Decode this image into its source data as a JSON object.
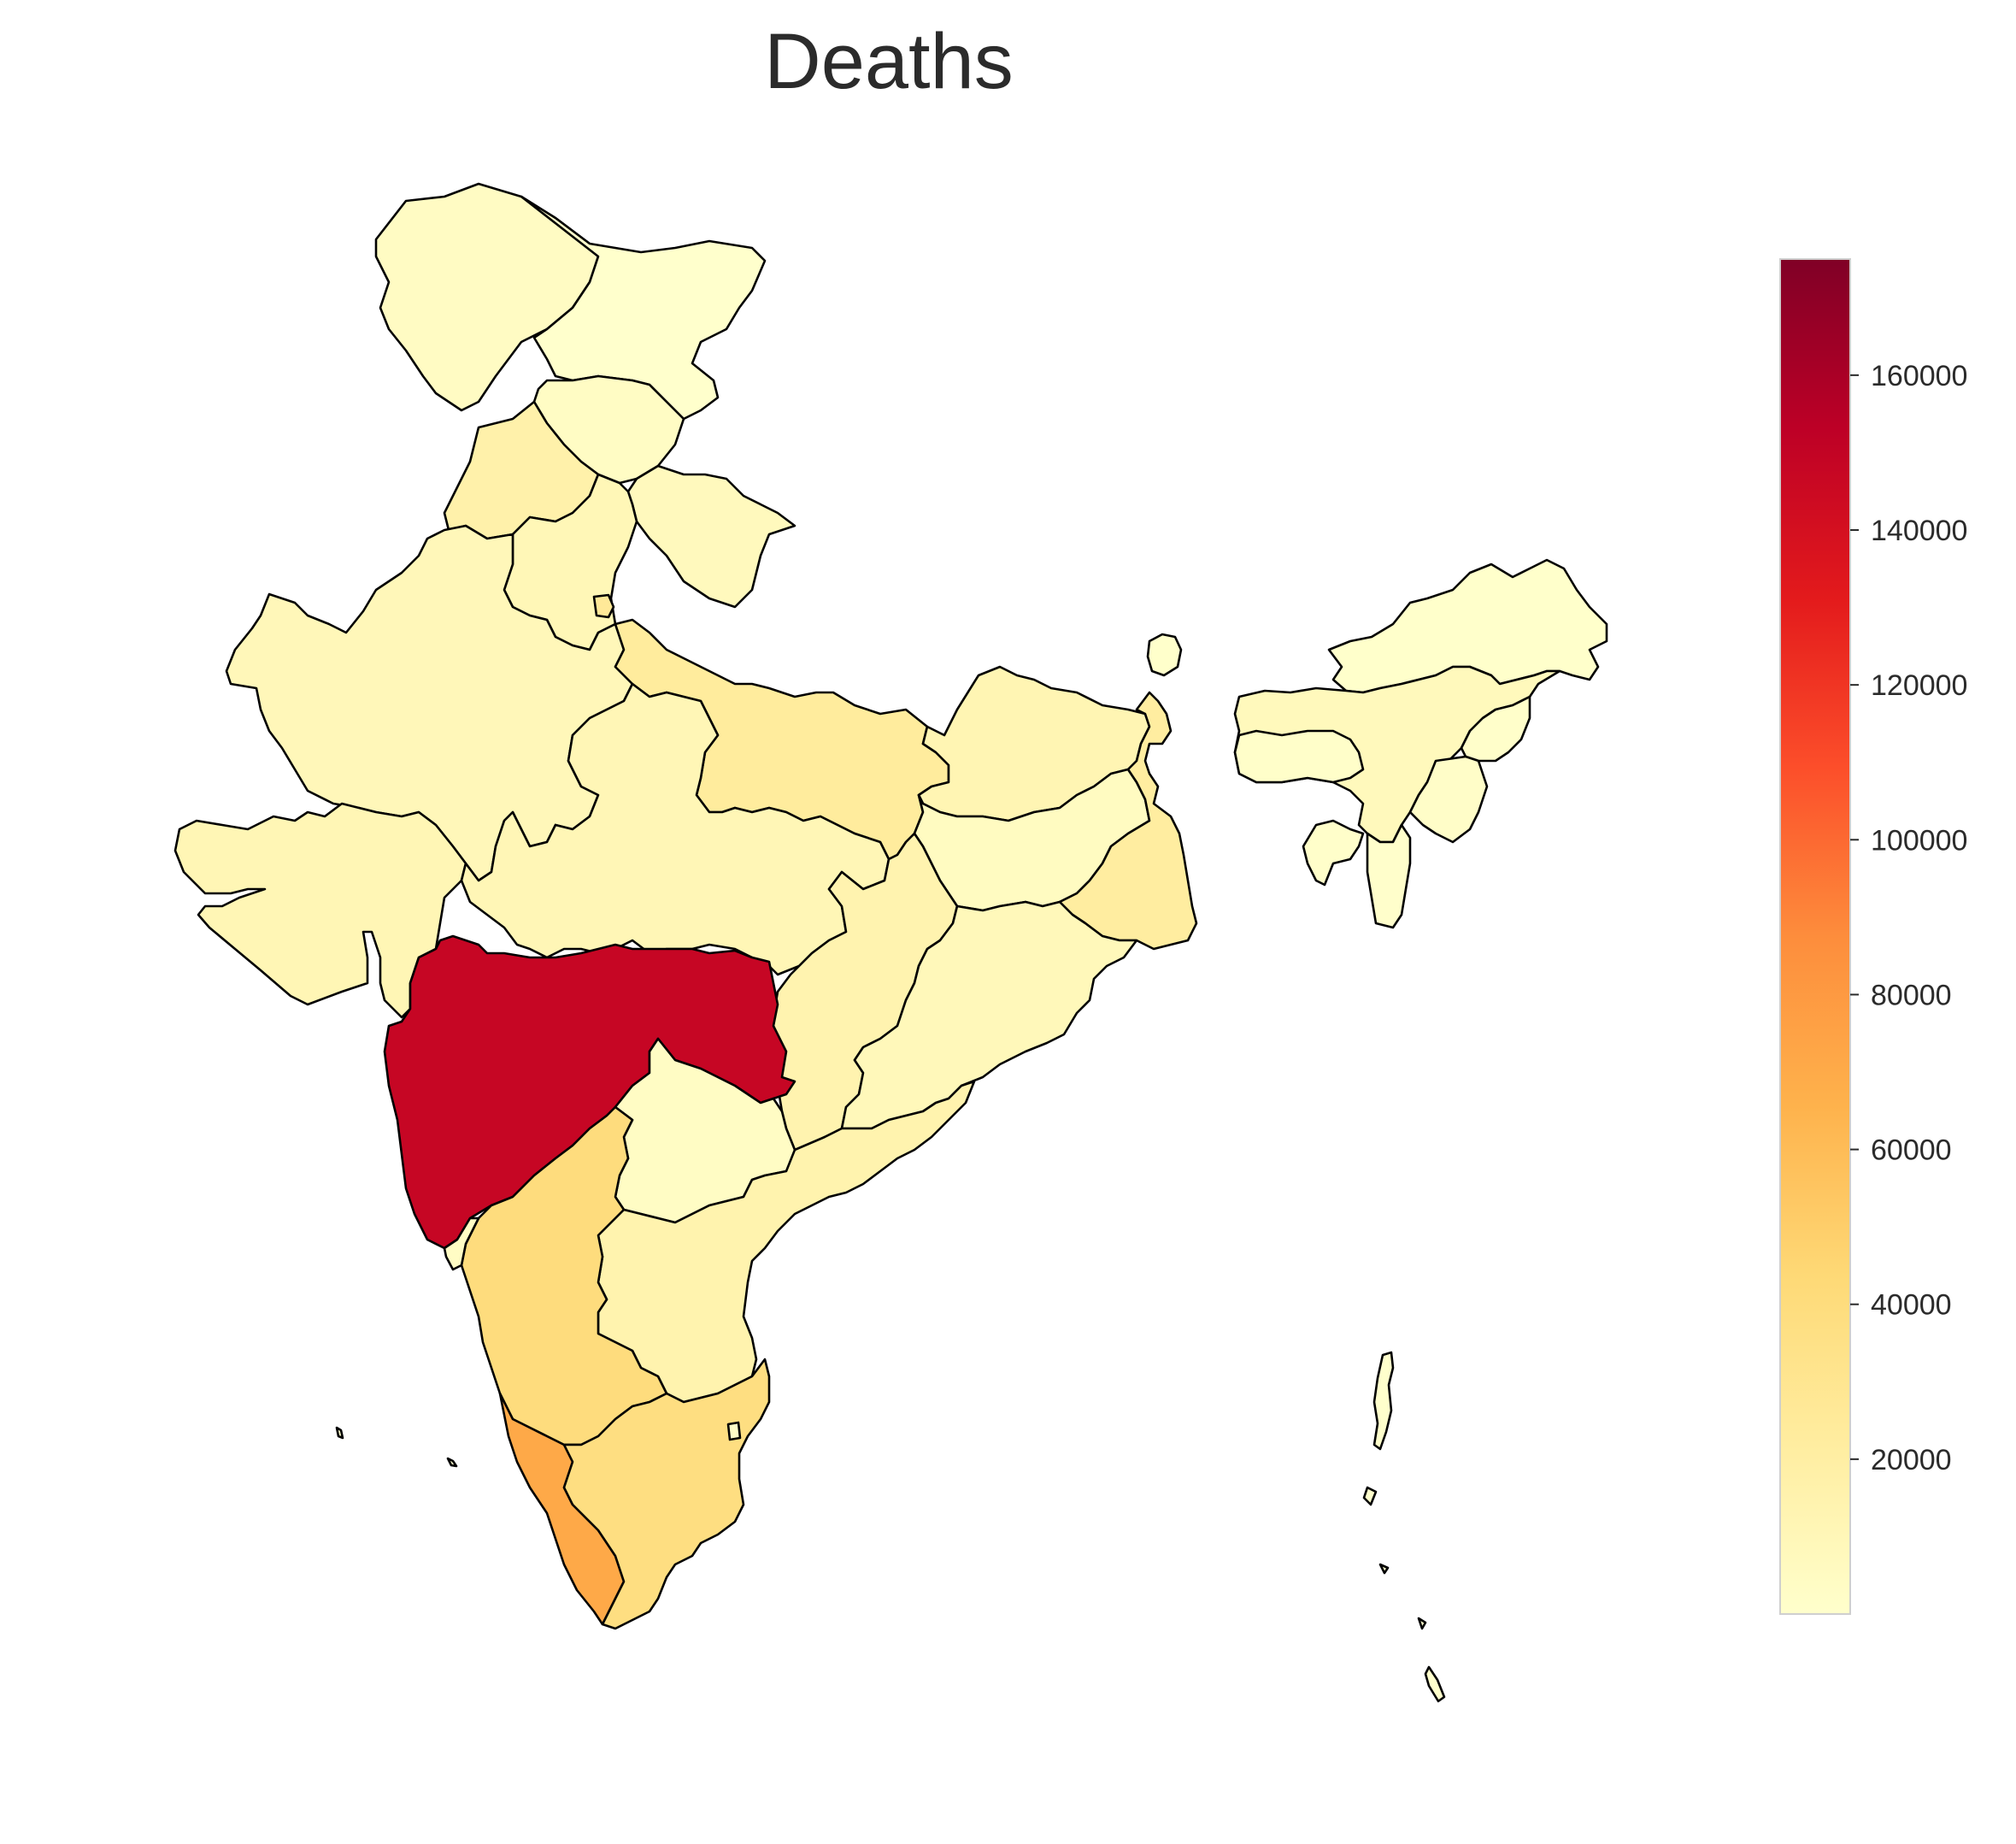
{
  "title": "Deaths",
  "colorbar": {
    "colormap": "YlOrRd",
    "min": 0,
    "max": 175000,
    "ticks": [
      20000,
      40000,
      60000,
      80000,
      100000,
      120000,
      140000,
      160000
    ],
    "tick_labels": [
      "20000",
      "40000",
      "60000",
      "80000",
      "100000",
      "120000",
      "140000",
      "160000"
    ],
    "stops": [
      "#ffffcc",
      "#ffeda0",
      "#fed976",
      "#feb24c",
      "#fd8d3c",
      "#fc4e2a",
      "#e31a1c",
      "#bd0026",
      "#800026"
    ]
  },
  "regions": [
    {
      "name": "Jammu & Kashmir",
      "value": 4500
    },
    {
      "name": "Ladakh",
      "value": 220
    },
    {
      "name": "Himachal Pradesh",
      "value": 4100
    },
    {
      "name": "Punjab",
      "value": 16800
    },
    {
      "name": "Uttarakhand",
      "value": 7700
    },
    {
      "name": "Haryana",
      "value": 10200
    },
    {
      "name": "Delhi",
      "value": 26200
    },
    {
      "name": "Rajasthan",
      "value": 9600
    },
    {
      "name": "Uttar Pradesh",
      "value": 23500
    },
    {
      "name": "Gujarat",
      "value": 11200
    },
    {
      "name": "Madhya Pradesh",
      "value": 10700
    },
    {
      "name": "Bihar",
      "value": 12300
    },
    {
      "name": "Jharkhand",
      "value": 5300
    },
    {
      "name": "West Bengal",
      "value": 21700
    },
    {
      "name": "Chhattisgarh",
      "value": 14200
    },
    {
      "name": "Odisha",
      "value": 9100
    },
    {
      "name": "Maharashtra",
      "value": 148000
    },
    {
      "name": "Telangana",
      "value": 4100
    },
    {
      "name": "Andhra Pradesh",
      "value": 14700
    },
    {
      "name": "Karnataka",
      "value": 40000
    },
    {
      "name": "Goa",
      "value": 3800
    },
    {
      "name": "Kerala",
      "value": 71000
    },
    {
      "name": "Tamil Nadu",
      "value": 38000
    },
    {
      "name": "Puducherry",
      "value": 1900
    },
    {
      "name": "Sikkim",
      "value": 500
    },
    {
      "name": "Arunachal Pradesh",
      "value": 300
    },
    {
      "name": "Assam",
      "value": 7800
    },
    {
      "name": "Meghalaya",
      "value": 1600
    },
    {
      "name": "Nagaland",
      "value": 780
    },
    {
      "name": "Manipur",
      "value": 2100
    },
    {
      "name": "Mizoram",
      "value": 700
    },
    {
      "name": "Tripura",
      "value": 930
    },
    {
      "name": "Andaman & Nicobar",
      "value": 130
    },
    {
      "name": "Lakshadweep",
      "value": 52
    }
  ]
}
